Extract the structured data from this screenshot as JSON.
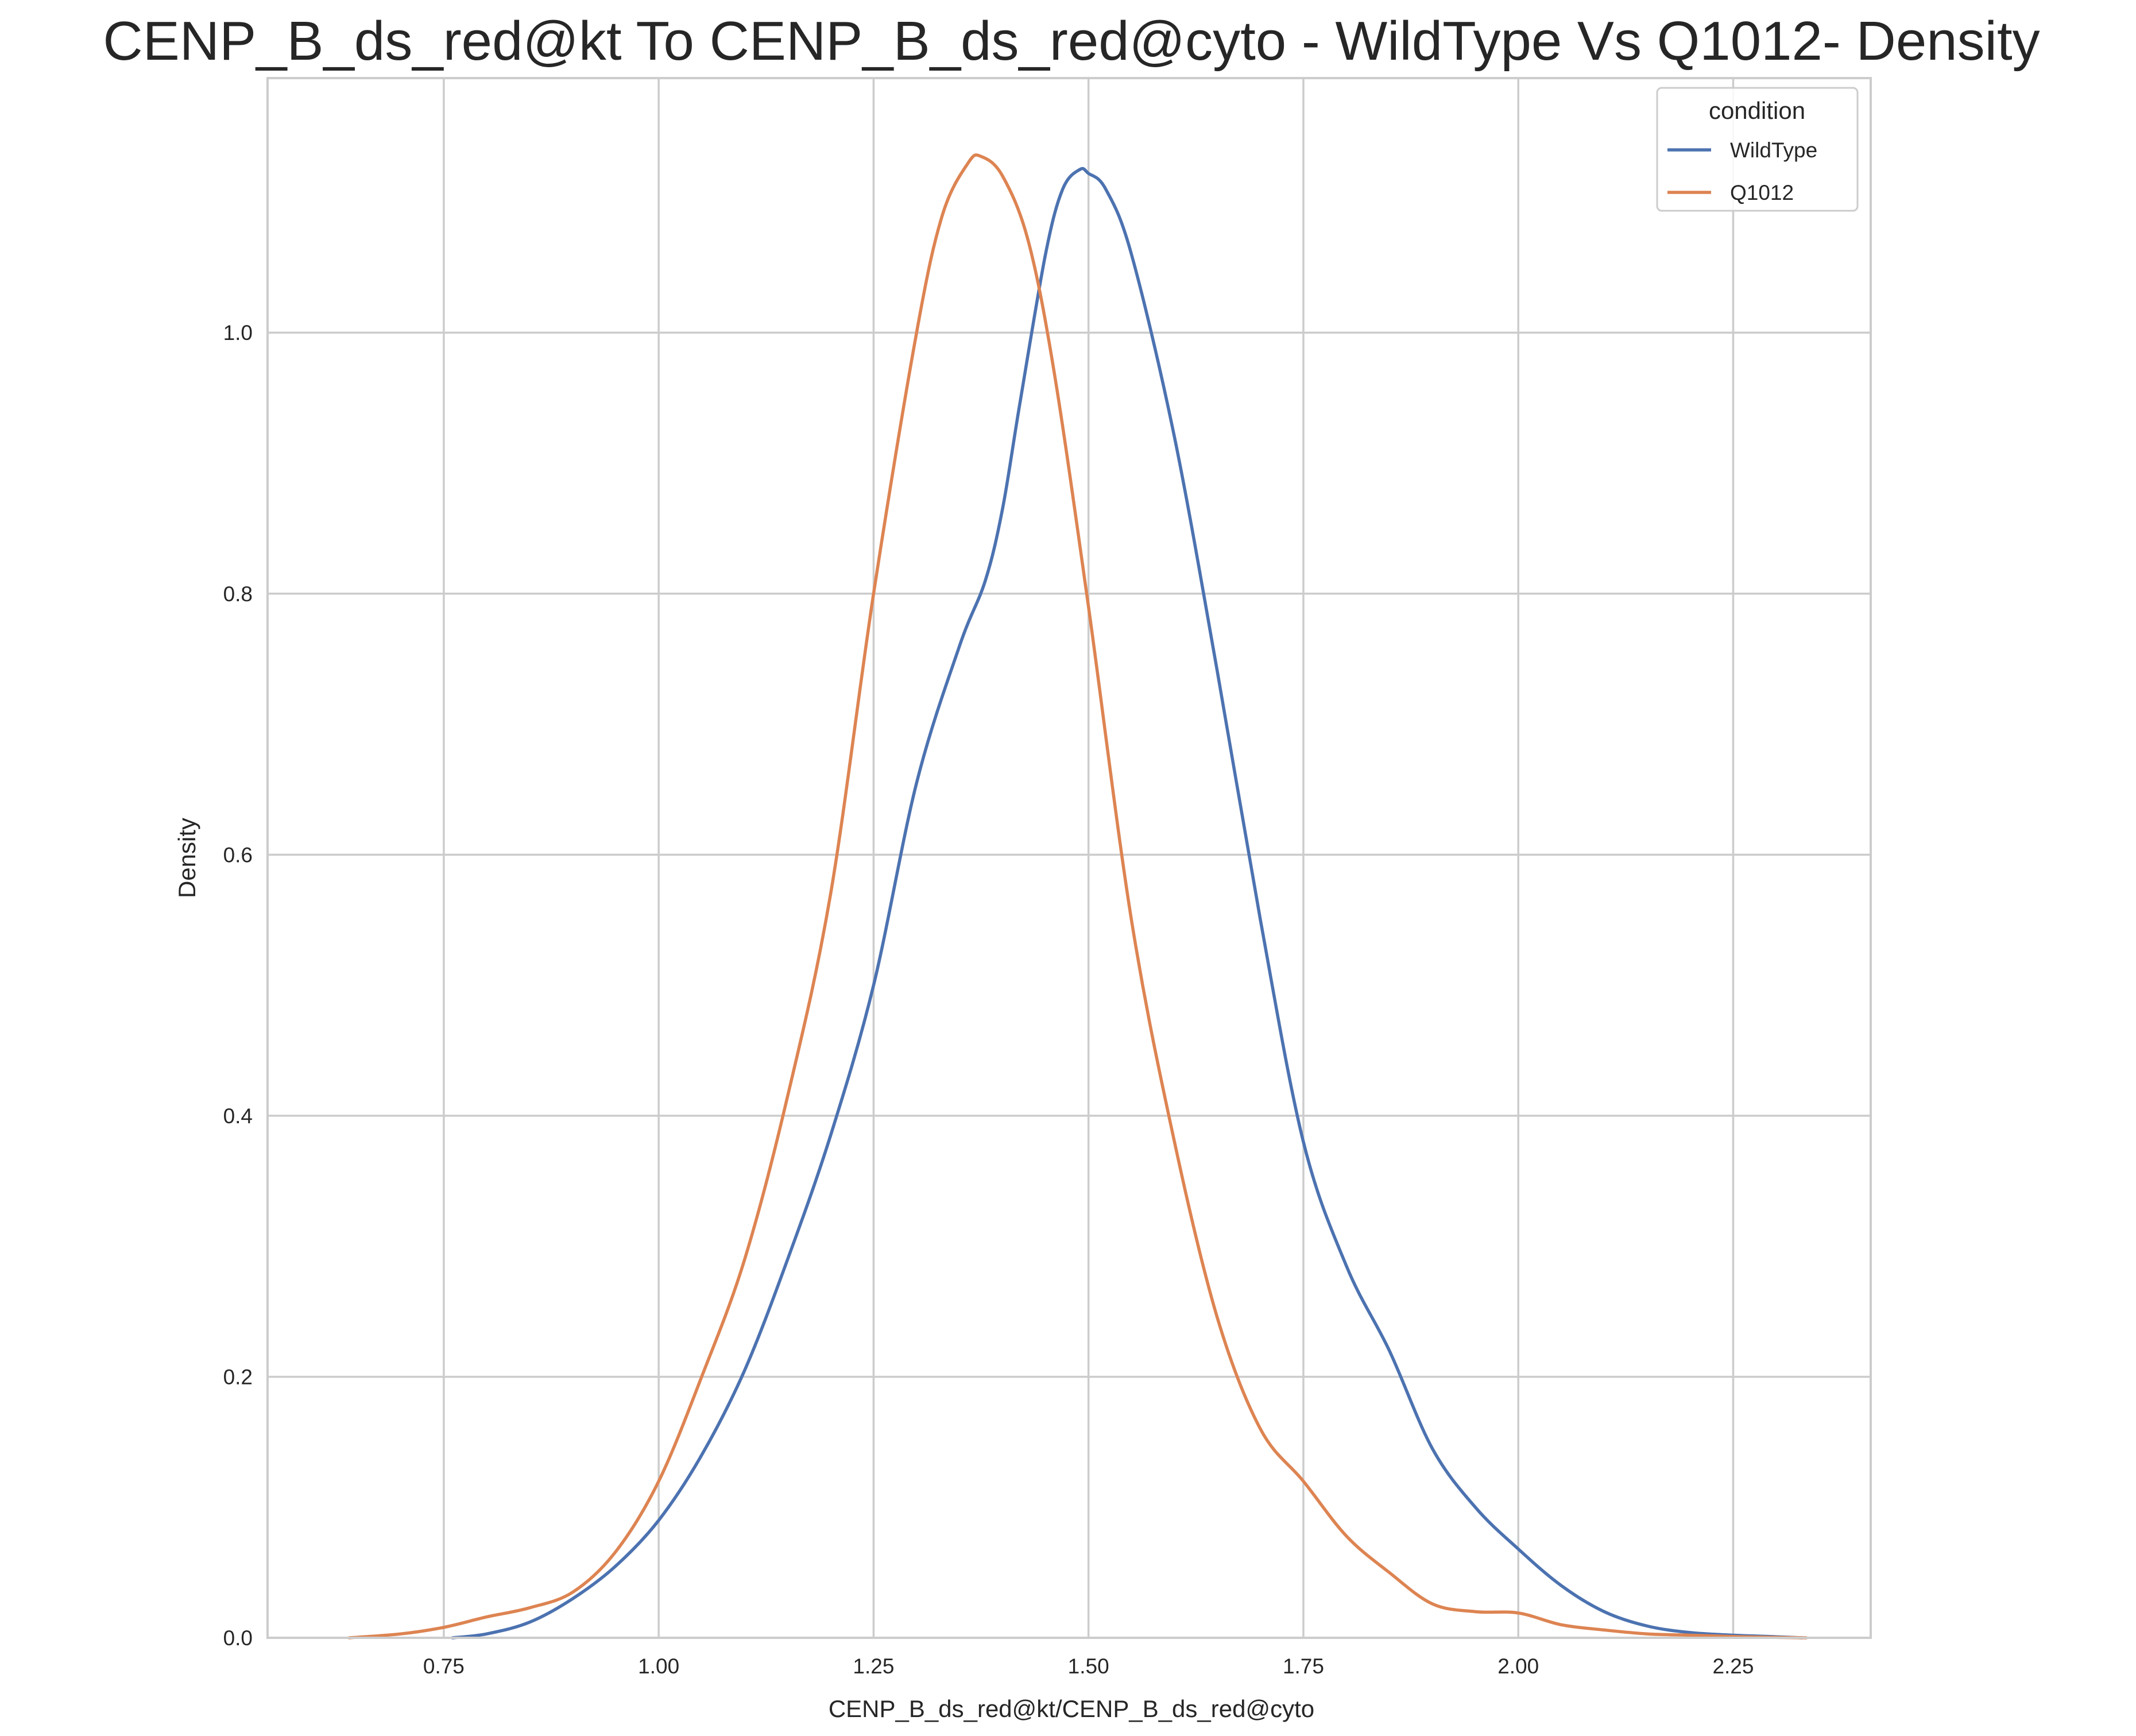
{
  "chart_data": {
    "type": "line",
    "title": "CENP_B_ds_red@kt To CENP_B_ds_red@cyto - WildType Vs Q1012- Density",
    "xlabel": "CENP_B_ds_red@kt/CENP_B_ds_red@cyto",
    "ylabel": "Density",
    "xlim": [
      0.545,
      2.41
    ],
    "ylim": [
      0,
      1.195
    ],
    "xticks": [
      0.75,
      1.0,
      1.25,
      1.5,
      1.75,
      2.0,
      2.25
    ],
    "xtick_labels": [
      "0.75",
      "1.00",
      "1.25",
      "1.50",
      "1.75",
      "2.00",
      "2.25"
    ],
    "yticks": [
      0.0,
      0.2,
      0.4,
      0.6,
      0.8,
      1.0
    ],
    "ytick_labels": [
      "0.0",
      "0.2",
      "0.4",
      "0.6",
      "0.8",
      "1.0"
    ],
    "grid": true,
    "legend": {
      "title": "condition",
      "position": "top-right"
    },
    "series": [
      {
        "name": "WildType",
        "color": "#4c72b0",
        "x": [
          0.76,
          0.8,
          0.85,
          0.9,
          0.95,
          1.0,
          1.05,
          1.1,
          1.15,
          1.2,
          1.25,
          1.3,
          1.35,
          1.38,
          1.4,
          1.42,
          1.45,
          1.47,
          1.49,
          1.5,
          1.52,
          1.55,
          1.6,
          1.65,
          1.7,
          1.75,
          1.8,
          1.85,
          1.9,
          1.95,
          2.0,
          2.05,
          2.1,
          2.15,
          2.2,
          2.25,
          2.3,
          2.33
        ],
        "y": [
          0.0,
          0.003,
          0.012,
          0.03,
          0.055,
          0.09,
          0.14,
          0.205,
          0.29,
          0.385,
          0.5,
          0.655,
          0.76,
          0.81,
          0.865,
          0.945,
          1.06,
          1.11,
          1.125,
          1.122,
          1.11,
          1.06,
          0.92,
          0.74,
          0.55,
          0.38,
          0.285,
          0.22,
          0.145,
          0.1,
          0.068,
          0.04,
          0.02,
          0.009,
          0.004,
          0.002,
          0.0008,
          0.0
        ]
      },
      {
        "name": "Q1012",
        "color": "#dd8452",
        "x": [
          0.64,
          0.7,
          0.75,
          0.8,
          0.85,
          0.9,
          0.95,
          1.0,
          1.05,
          1.1,
          1.15,
          1.2,
          1.25,
          1.3,
          1.33,
          1.36,
          1.375,
          1.4,
          1.43,
          1.46,
          1.5,
          1.55,
          1.6,
          1.65,
          1.7,
          1.75,
          1.8,
          1.85,
          1.9,
          1.95,
          2.0,
          2.05,
          2.1,
          2.15,
          2.2,
          2.25,
          2.3,
          2.335
        ],
        "y": [
          0.0,
          0.003,
          0.008,
          0.016,
          0.023,
          0.035,
          0.066,
          0.12,
          0.2,
          0.29,
          0.415,
          0.57,
          0.8,
          1.0,
          1.09,
          1.13,
          1.135,
          1.12,
          1.07,
          0.97,
          0.79,
          0.55,
          0.38,
          0.245,
          0.16,
          0.12,
          0.078,
          0.05,
          0.026,
          0.02,
          0.019,
          0.01,
          0.006,
          0.003,
          0.002,
          0.001,
          0.0003,
          0.0
        ]
      }
    ]
  }
}
